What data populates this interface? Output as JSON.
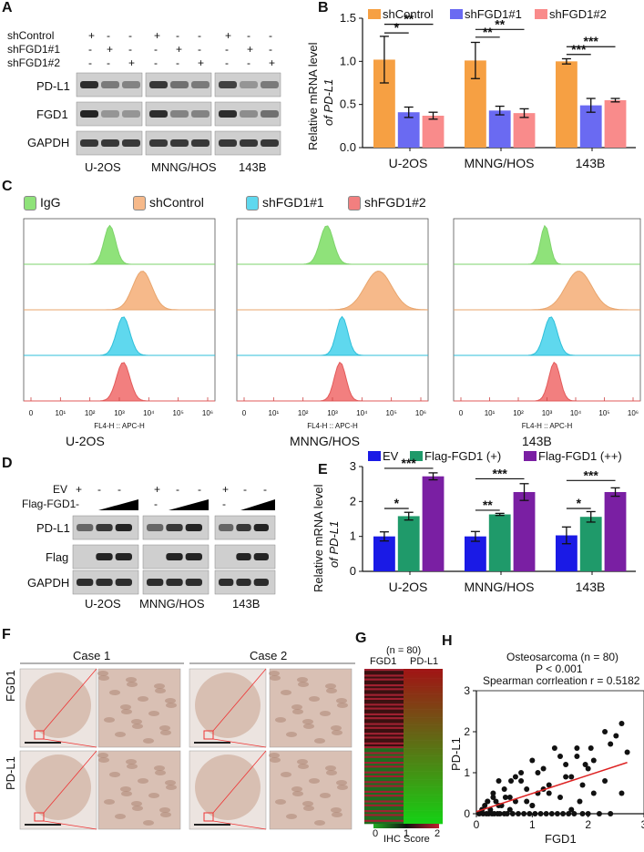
{
  "panelA": {
    "letter": "A",
    "rows": [
      "shControl",
      "shFGD1#1",
      "shFGD1#2"
    ],
    "signs": [
      [
        "+",
        "-",
        "-"
      ],
      [
        "-",
        "+",
        "-"
      ],
      [
        "-",
        "-",
        "+"
      ]
    ],
    "blots": [
      "PD-L1",
      "FGD1",
      "GAPDH"
    ],
    "cells": [
      "U-2OS",
      "MNNG/HOS",
      "143B"
    ]
  },
  "panelB": {
    "letter": "B",
    "legend": [
      "shControl",
      "shFGD1#1",
      "shFGD1#2"
    ],
    "colors": [
      "#f6a043",
      "#6a6af2",
      "#f98b8b"
    ],
    "ylabel1": "Relative mRNA level",
    "ylabel2": "of PD-L1",
    "ticks": [
      "0.0",
      "0.5",
      "1.0",
      "1.5"
    ],
    "sig": [
      "*",
      "**",
      "**",
      "**",
      "***",
      "***"
    ]
  },
  "panelC": {
    "letter": "C",
    "legend": [
      "IgG",
      "shControl",
      "shFGD1#1",
      "shFGD1#2"
    ],
    "colors": [
      "#8fe27a",
      "#f6b98a",
      "#5fd8ee",
      "#f27f7f"
    ],
    "xlab": "FL4-H :: APC-H",
    "titles": [
      "U-2OS",
      "MNNG/HOS",
      "143B"
    ],
    "ticks": [
      "0",
      "10¹",
      "10²",
      "10³",
      "10⁴",
      "10⁵",
      "10⁶"
    ]
  },
  "panelD": {
    "letter": "D",
    "rows": [
      "EV",
      "Flag-FGD1"
    ],
    "ev": [
      "+",
      "-",
      "-"
    ],
    "flag": "-",
    "blots": [
      "PD-L1",
      "Flag",
      "GAPDH"
    ],
    "cells": [
      "U-2OS",
      "MNNG/HOS",
      "143B"
    ]
  },
  "panelE": {
    "letter": "E",
    "legend": [
      "EV",
      "Flag-FGD1 (+)",
      "Flag-FGD1 (++)"
    ],
    "colors": [
      "#1a1ae6",
      "#1f9a6a",
      "#7a1fa3"
    ],
    "ylabel1": "Relative mRNA level",
    "ylabel2": "of PD-L1",
    "ticks": [
      "0",
      "1",
      "2",
      "3"
    ],
    "sig": [
      "*",
      "***",
      "**",
      "***",
      "*",
      "***"
    ]
  },
  "panelF": {
    "letter": "F",
    "cases": [
      "Case 1",
      "Case 2"
    ],
    "rows": [
      "FGD1",
      "PD-L1"
    ]
  },
  "panelG": {
    "letter": "G",
    "n": "(n = 80)",
    "cols": [
      "FGD1",
      "PD-L1"
    ],
    "scale": [
      "0",
      "1",
      "2"
    ],
    "scale_label": "IHC Score"
  },
  "panelH": {
    "letter": "H",
    "title1": "Osteosarcoma (n = 80)",
    "title2": "P < 0.001",
    "title3": "Spearman corrleation r = 0.5182",
    "xlabel": "FGD1",
    "ylabel": "PD-L1",
    "xticks": [
      "0",
      "1",
      "2",
      "3"
    ],
    "yticks": [
      "0",
      "1",
      "2",
      "3"
    ]
  },
  "chart_data": [
    {
      "type": "bar",
      "id": "B",
      "categories": [
        "U-2OS",
        "MNNG/HOS",
        "143B"
      ],
      "series": [
        {
          "name": "shControl",
          "values": [
            1.02,
            1.01,
            1.0
          ],
          "err": [
            0.27,
            0.21,
            0.03
          ]
        },
        {
          "name": "shFGD1#1",
          "values": [
            0.41,
            0.43,
            0.49
          ],
          "err": [
            0.06,
            0.05,
            0.08
          ]
        },
        {
          "name": "shFGD1#2",
          "values": [
            0.37,
            0.4,
            0.55
          ],
          "err": [
            0.04,
            0.05,
            0.02
          ]
        }
      ],
      "ylim": [
        0,
        1.5
      ],
      "ylabel": "Relative mRNA level of PD-L1"
    },
    {
      "type": "bar",
      "id": "E",
      "categories": [
        "U-2OS",
        "MNNG/HOS",
        "143B"
      ],
      "series": [
        {
          "name": "EV",
          "values": [
            1.0,
            1.0,
            1.03
          ],
          "err": [
            0.13,
            0.14,
            0.24
          ]
        },
        {
          "name": "Flag-FGD1 (+)",
          "values": [
            1.58,
            1.63,
            1.56
          ],
          "err": [
            0.11,
            0.03,
            0.15
          ]
        },
        {
          "name": "Flag-FGD1 (++)",
          "values": [
            2.72,
            2.27,
            2.27
          ],
          "err": [
            0.1,
            0.24,
            0.12
          ]
        }
      ],
      "ylim": [
        0,
        3
      ],
      "ylabel": "Relative mRNA level of PD-L1"
    },
    {
      "type": "scatter",
      "id": "H",
      "x": [
        0.05,
        0.1,
        0.12,
        0.15,
        0.18,
        0.2,
        0.22,
        0.25,
        0.28,
        0.3,
        0.32,
        0.35,
        0.38,
        0.4,
        0.42,
        0.45,
        0.5,
        0.52,
        0.55,
        0.6,
        0.62,
        0.65,
        0.7,
        0.75,
        0.8,
        0.85,
        0.9,
        0.95,
        1.0,
        1.0,
        1.05,
        1.1,
        1.15,
        1.2,
        1.25,
        1.3,
        1.35,
        1.4,
        1.45,
        1.5,
        1.55,
        1.6,
        1.65,
        1.7,
        1.75,
        1.8,
        1.85,
        1.9,
        1.95,
        2.0,
        2.05,
        2.1,
        2.2,
        2.3,
        2.4,
        2.5,
        2.6,
        2.7,
        0.3,
        0.5,
        0.7,
        0.9,
        1.1,
        1.3,
        1.5,
        1.7,
        1.9,
        2.1,
        2.3,
        0.4,
        0.6,
        0.8,
        1.2,
        1.6,
        2.0,
        2.4,
        0.2,
        1.0,
        1.8,
        2.6
      ],
      "y": [
        0,
        0.1,
        0,
        0.2,
        0,
        0.3,
        0,
        0.1,
        0,
        0.5,
        0,
        0.3,
        0,
        0.8,
        0,
        0.2,
        0,
        0.4,
        0,
        0.1,
        0.8,
        0,
        0.3,
        0,
        1.0,
        0,
        0.6,
        0,
        0.2,
        1.3,
        0,
        0.5,
        0,
        1.1,
        0,
        0.7,
        0,
        1.6,
        0,
        0.4,
        0,
        1.2,
        0,
        0.9,
        0,
        1.6,
        0.3,
        0,
        1.2,
        0,
        1.6,
        0.5,
        0,
        2.0,
        0,
        1.9,
        2.2,
        1.5,
        0.4,
        0.6,
        0.9,
        0.3,
        1.0,
        0.5,
        1.4,
        0.1,
        0.7,
        1.3,
        0.8,
        0.2,
        0.4,
        0.8,
        0.6,
        0.9,
        1.1,
        1.7,
        0.3,
        0.2,
        1.4,
        0.5
      ],
      "fit": {
        "x": [
          0,
          2.7
        ],
        "y": [
          0.05,
          1.25
        ]
      },
      "xlabel": "FGD1",
      "ylabel": "PD-L1",
      "xlim": [
        0,
        3
      ],
      "ylim": [
        0,
        3
      ],
      "title": "Osteosarcoma (n = 80)"
    }
  ]
}
